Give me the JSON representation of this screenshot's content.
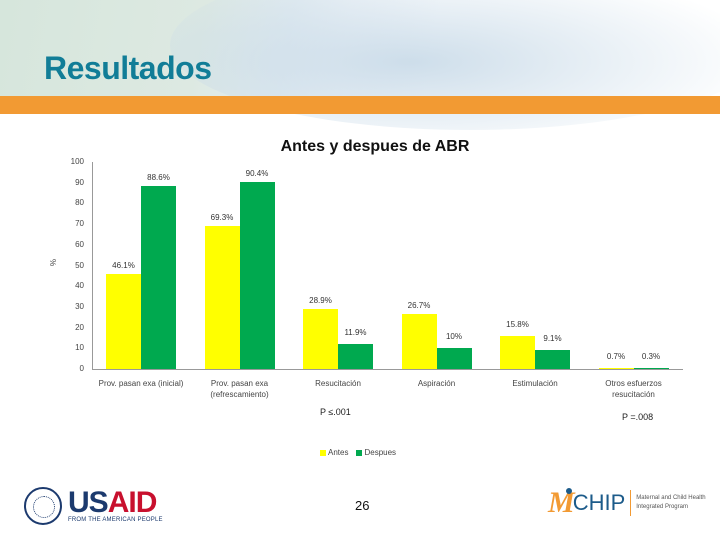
{
  "slide": {
    "title": "Resultados",
    "page_number": "26",
    "colors": {
      "title": "#117d97",
      "accent_bar": "#f29a33",
      "antes": "#ffff00",
      "despues": "#00a94f"
    }
  },
  "chart_data": {
    "type": "bar",
    "title": "Antes y despues de ABR",
    "xlabel": "",
    "ylabel": "%",
    "ylim": [
      0,
      100
    ],
    "yticks": [
      0,
      10,
      20,
      30,
      40,
      50,
      60,
      70,
      80,
      90,
      100
    ],
    "grid": false,
    "legend_position": "bottom",
    "categories": [
      "Prov. pasan exa (inicial)",
      "Prov. pasan exa (refrescamiento)",
      "Resucitación",
      "Aspiración",
      "Estimulación",
      "Otros esfuerzos resucitación"
    ],
    "series": [
      {
        "name": "Antes",
        "color": "#ffff00",
        "values": [
          46.1,
          69.3,
          28.9,
          26.7,
          15.8,
          0.7
        ],
        "labels": [
          "46.1%",
          "69.3%",
          "28.9%",
          "26.7%",
          "15.8%",
          "0.7%"
        ]
      },
      {
        "name": "Despues",
        "color": "#00a94f",
        "values": [
          88.6,
          90.4,
          11.9,
          10,
          9.1,
          0.3
        ],
        "labels": [
          "88.6%",
          "90.4%",
          "11.9%",
          "10%",
          "9.1%",
          "0.3%"
        ]
      }
    ],
    "annotations": [
      "P ≤.001",
      "P =.008"
    ]
  },
  "categories_display": [
    [
      "Prov. pasan exa (inicial)",
      ""
    ],
    [
      "Prov. pasan exa",
      "(refrescamiento)"
    ],
    [
      "Resucitación",
      ""
    ],
    [
      "Aspiración",
      ""
    ],
    [
      "Estimulación",
      ""
    ],
    [
      "Otros esfuerzos",
      "resucitación"
    ]
  ],
  "logos": {
    "usaid": {
      "word_us": "US",
      "word_aid": "AID",
      "tagline": "FROM THE AMERICAN PEOPLE"
    },
    "mchip": {
      "mark": "M",
      "name": "CHIP",
      "desc_line1": "Maternal and Child Health",
      "desc_line2": "Integrated Program"
    }
  }
}
